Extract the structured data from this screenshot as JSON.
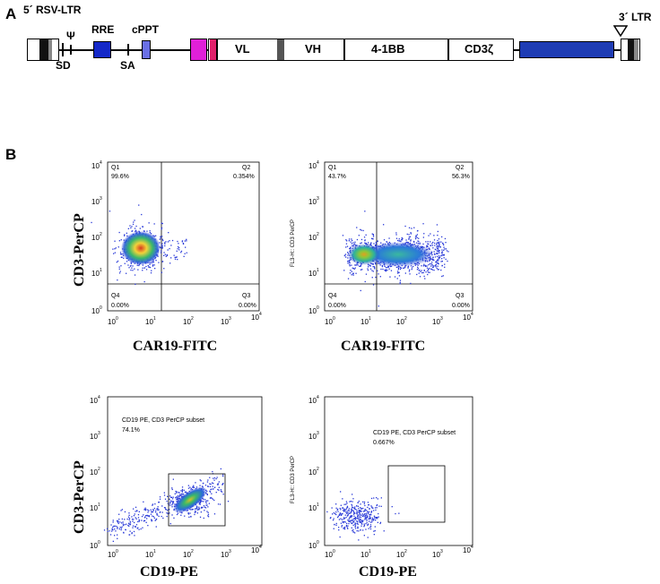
{
  "panel_a": {
    "letter": "A",
    "labels": {
      "ltr5": "5´ RSV-LTR",
      "psi": "Ψ",
      "sd": "SD",
      "rre": "RRE",
      "sa": "SA",
      "cppt": "cPPT",
      "ltr3": "3´ LTR"
    },
    "segments": {
      "vl": "VL",
      "vh": "VH",
      "bb": "4-1BB",
      "cd3z": "CD3ζ"
    },
    "colors": {
      "rre": "#1428c8",
      "cppt": "#6a70e6",
      "signal": "#e020d8",
      "hinge": "#e0206a",
      "linker": "#555555",
      "wpre": "#1e3cb4"
    }
  },
  "panel_b": {
    "letter": "B",
    "plots": [
      {
        "type": "quadrant",
        "q1": "Q1",
        "q1_value": "99.6%",
        "q2": "Q2",
        "q2_value": "0.354%",
        "q3": "Q3",
        "q3_value": "0.00%",
        "q4": "Q4",
        "q4_value": "0.00%",
        "ytitle": "CD3-PerCP",
        "xtitle": "CAR19-FITC",
        "inner_ylabel": ""
      },
      {
        "type": "quadrant",
        "q1": "Q1",
        "q1_value": "43.7%",
        "q2": "Q2",
        "q2_value": "56.3%",
        "q3": "Q3",
        "q3_value": "0.00%",
        "q4": "Q4",
        "q4_value": "0.00%",
        "ytitle": "",
        "xtitle": "CAR19-FITC",
        "inner_ylabel": "FL3-H:: CD3 PerCP"
      },
      {
        "type": "gate",
        "gate_name": "CD19 PE, CD3 PerCP subset",
        "gate_value": "74.1%",
        "ytitle": "CD3-PerCP",
        "xtitle": "CD19-PE",
        "inner_ylabel": ""
      },
      {
        "type": "gate",
        "gate_name": "CD19 PE, CD3 PerCP subset",
        "gate_value": "0.667%",
        "ytitle": "",
        "xtitle": "CD19-PE",
        "inner_ylabel": "FL3-H:: CD3 PerCP"
      }
    ],
    "axis_ticks": [
      "10",
      "10",
      "10",
      "10",
      "10"
    ],
    "axis_exponents": [
      "0",
      "1",
      "2",
      "3",
      "4"
    ]
  }
}
